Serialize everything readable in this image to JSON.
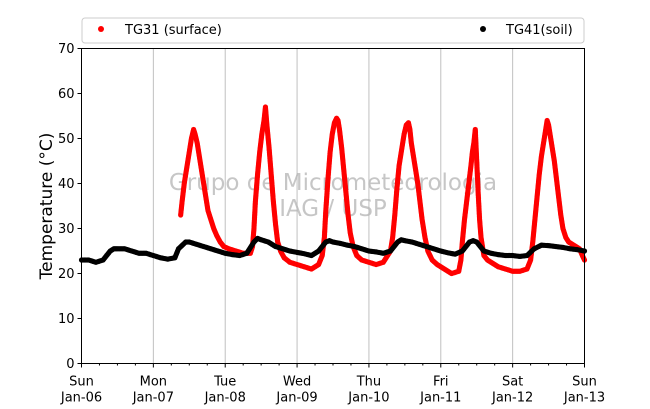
{
  "chart_data": {
    "type": "scatter",
    "ylabel": "Temperature (°C)",
    "ylim": [
      0,
      70
    ],
    "yticks": [
      0,
      10,
      20,
      30,
      40,
      50,
      60,
      70
    ],
    "xlim": [
      0,
      7
    ],
    "xticks": [
      {
        "x": 0,
        "day": "Sun",
        "date": "Jan-06"
      },
      {
        "x": 1,
        "day": "Mon",
        "date": "Jan-07"
      },
      {
        "x": 2,
        "day": "Tue",
        "date": "Jan-08"
      },
      {
        "x": 3,
        "day": "Wed",
        "date": "Jan-09"
      },
      {
        "x": 4,
        "day": "Thu",
        "date": "Jan-10"
      },
      {
        "x": 5,
        "day": "Fri",
        "date": "Jan-11"
      },
      {
        "x": 6,
        "day": "Sat",
        "date": "Jan-12"
      },
      {
        "x": 7,
        "day": "Sun",
        "date": "Jan-13"
      }
    ],
    "grid": "vertical",
    "legend": {
      "placement": "top"
    },
    "watermark": [
      "Grupo de Micrometeorologia",
      "IAG / USP"
    ],
    "series": [
      {
        "name": "TG31 (surface)",
        "color": "#ff0000",
        "points": [
          [
            1.38,
            33
          ],
          [
            1.4,
            36
          ],
          [
            1.43,
            40
          ],
          [
            1.46,
            43
          ],
          [
            1.5,
            47
          ],
          [
            1.53,
            50
          ],
          [
            1.56,
            52
          ],
          [
            1.58,
            51
          ],
          [
            1.61,
            49
          ],
          [
            1.64,
            46
          ],
          [
            1.67,
            43
          ],
          [
            1.7,
            40
          ],
          [
            1.73,
            37
          ],
          [
            1.76,
            34
          ],
          [
            1.8,
            32
          ],
          [
            1.84,
            30
          ],
          [
            1.88,
            28.5
          ],
          [
            1.93,
            27
          ],
          [
            1.98,
            26
          ],
          [
            2.05,
            25.5
          ],
          [
            2.15,
            25
          ],
          [
            2.25,
            24.5
          ],
          [
            2.35,
            24.5
          ],
          [
            2.38,
            26
          ],
          [
            2.4,
            30
          ],
          [
            2.42,
            36
          ],
          [
            2.45,
            42
          ],
          [
            2.48,
            47
          ],
          [
            2.51,
            51
          ],
          [
            2.54,
            54
          ],
          [
            2.56,
            57
          ],
          [
            2.58,
            53
          ],
          [
            2.61,
            48
          ],
          [
            2.64,
            42
          ],
          [
            2.67,
            36
          ],
          [
            2.7,
            31
          ],
          [
            2.73,
            27
          ],
          [
            2.77,
            25
          ],
          [
            2.82,
            23.5
          ],
          [
            2.9,
            22.5
          ],
          [
            3.0,
            22
          ],
          [
            3.1,
            21.5
          ],
          [
            3.2,
            21
          ],
          [
            3.3,
            22
          ],
          [
            3.35,
            24
          ],
          [
            3.38,
            28
          ],
          [
            3.4,
            34
          ],
          [
            3.43,
            41
          ],
          [
            3.46,
            47
          ],
          [
            3.49,
            51
          ],
          [
            3.52,
            53.5
          ],
          [
            3.55,
            54.5
          ],
          [
            3.57,
            54
          ],
          [
            3.59,
            52
          ],
          [
            3.62,
            48
          ],
          [
            3.65,
            43
          ],
          [
            3.68,
            38
          ],
          [
            3.71,
            33
          ],
          [
            3.74,
            29
          ],
          [
            3.78,
            26
          ],
          [
            3.83,
            24
          ],
          [
            3.9,
            23
          ],
          [
            4.0,
            22.5
          ],
          [
            4.1,
            22
          ],
          [
            4.2,
            22.5
          ],
          [
            4.3,
            25
          ],
          [
            4.33,
            28
          ],
          [
            4.36,
            33
          ],
          [
            4.39,
            39
          ],
          [
            4.42,
            44
          ],
          [
            4.46,
            48
          ],
          [
            4.49,
            51
          ],
          [
            4.52,
            53
          ],
          [
            4.55,
            53.5
          ],
          [
            4.57,
            52
          ],
          [
            4.59,
            49
          ],
          [
            4.62,
            46
          ],
          [
            4.65,
            43
          ],
          [
            4.68,
            40
          ],
          [
            4.71,
            36
          ],
          [
            4.74,
            32
          ],
          [
            4.78,
            28
          ],
          [
            4.82,
            25
          ],
          [
            4.88,
            23
          ],
          [
            4.95,
            22
          ],
          [
            5.05,
            21
          ],
          [
            5.15,
            20
          ],
          [
            5.25,
            20.5
          ],
          [
            5.28,
            23
          ],
          [
            5.3,
            27
          ],
          [
            5.33,
            32
          ],
          [
            5.36,
            36
          ],
          [
            5.39,
            40
          ],
          [
            5.42,
            44
          ],
          [
            5.44,
            47
          ],
          [
            5.46,
            49
          ],
          [
            5.48,
            52
          ],
          [
            5.5,
            45
          ],
          [
            5.52,
            38
          ],
          [
            5.54,
            32
          ],
          [
            5.56,
            28
          ],
          [
            5.6,
            24
          ],
          [
            5.65,
            23
          ],
          [
            5.7,
            22.5
          ],
          [
            5.8,
            21.5
          ],
          [
            5.9,
            21
          ],
          [
            6.0,
            20.5
          ],
          [
            6.1,
            20.5
          ],
          [
            6.2,
            21
          ],
          [
            6.25,
            23
          ],
          [
            6.28,
            27
          ],
          [
            6.31,
            32
          ],
          [
            6.34,
            37
          ],
          [
            6.37,
            42
          ],
          [
            6.4,
            46
          ],
          [
            6.43,
            49
          ],
          [
            6.46,
            52
          ],
          [
            6.48,
            54
          ],
          [
            6.5,
            53
          ],
          [
            6.52,
            51
          ],
          [
            6.55,
            48
          ],
          [
            6.58,
            45
          ],
          [
            6.61,
            41
          ],
          [
            6.64,
            37
          ],
          [
            6.67,
            33
          ],
          [
            6.7,
            30
          ],
          [
            6.74,
            28
          ],
          [
            6.78,
            27
          ],
          [
            6.83,
            26.5
          ],
          [
            6.88,
            26
          ],
          [
            6.93,
            25.5
          ],
          [
            6.97,
            24
          ],
          [
            7.0,
            23
          ]
        ]
      },
      {
        "name": "TG41(soil)",
        "color": "#000000",
        "points": [
          [
            0.0,
            23
          ],
          [
            0.1,
            23
          ],
          [
            0.2,
            22.5
          ],
          [
            0.3,
            23
          ],
          [
            0.4,
            25
          ],
          [
            0.45,
            25.5
          ],
          [
            0.5,
            25.5
          ],
          [
            0.6,
            25.5
          ],
          [
            0.7,
            25
          ],
          [
            0.8,
            24.5
          ],
          [
            0.9,
            24.5
          ],
          [
            1.0,
            24
          ],
          [
            1.1,
            23.5
          ],
          [
            1.2,
            23.2
          ],
          [
            1.3,
            23.5
          ],
          [
            1.35,
            25.5
          ],
          [
            1.45,
            27
          ],
          [
            1.5,
            27
          ],
          [
            1.6,
            26.5
          ],
          [
            1.7,
            26
          ],
          [
            1.8,
            25.5
          ],
          [
            1.9,
            25
          ],
          [
            2.0,
            24.5
          ],
          [
            2.1,
            24.2
          ],
          [
            2.2,
            24
          ],
          [
            2.3,
            24.5
          ],
          [
            2.4,
            27
          ],
          [
            2.45,
            27.8
          ],
          [
            2.5,
            27.5
          ],
          [
            2.6,
            27
          ],
          [
            2.7,
            26
          ],
          [
            2.8,
            25.5
          ],
          [
            2.9,
            25
          ],
          [
            3.0,
            24.7
          ],
          [
            3.1,
            24.4
          ],
          [
            3.2,
            24
          ],
          [
            3.3,
            25
          ],
          [
            3.4,
            27
          ],
          [
            3.45,
            27.3
          ],
          [
            3.5,
            27
          ],
          [
            3.6,
            26.7
          ],
          [
            3.7,
            26.3
          ],
          [
            3.8,
            26
          ],
          [
            3.9,
            25.5
          ],
          [
            4.0,
            25
          ],
          [
            4.1,
            24.8
          ],
          [
            4.2,
            24.5
          ],
          [
            4.3,
            25
          ],
          [
            4.4,
            27
          ],
          [
            4.45,
            27.5
          ],
          [
            4.5,
            27.3
          ],
          [
            4.6,
            27
          ],
          [
            4.7,
            26.5
          ],
          [
            4.8,
            26
          ],
          [
            4.9,
            25.5
          ],
          [
            5.0,
            25
          ],
          [
            5.1,
            24.6
          ],
          [
            5.2,
            24.3
          ],
          [
            5.3,
            25
          ],
          [
            5.4,
            27
          ],
          [
            5.45,
            27.3
          ],
          [
            5.5,
            27
          ],
          [
            5.55,
            26
          ],
          [
            5.6,
            25
          ],
          [
            5.7,
            24.5
          ],
          [
            5.8,
            24.2
          ],
          [
            5.9,
            24
          ],
          [
            6.0,
            24
          ],
          [
            6.1,
            23.8
          ],
          [
            6.2,
            24
          ],
          [
            6.3,
            25.5
          ],
          [
            6.4,
            26.3
          ],
          [
            6.5,
            26.2
          ],
          [
            6.6,
            26
          ],
          [
            6.7,
            25.8
          ],
          [
            6.8,
            25.5
          ],
          [
            6.9,
            25.3
          ],
          [
            7.0,
            25
          ]
        ]
      }
    ]
  }
}
